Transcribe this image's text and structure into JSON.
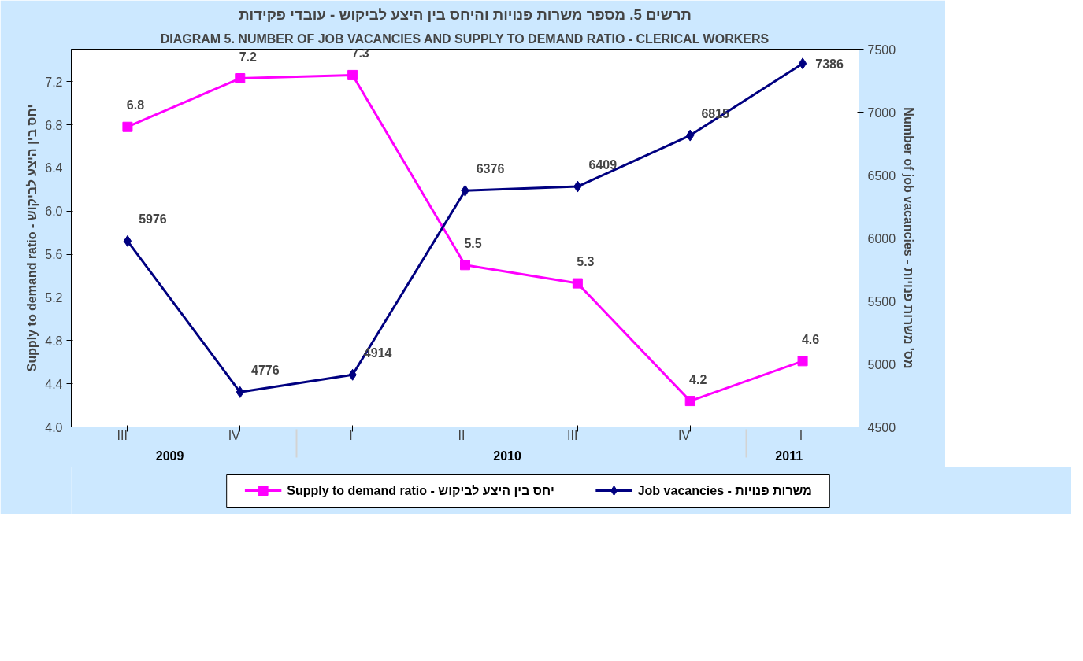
{
  "chart_data": {
    "type": "line",
    "title": "תרשים 5. מספר משרות פנויות והיחס בין היצע לביקוש - עובדי פקידות",
    "subtitle": "DIAGRAM 5. NUMBER OF JOB VACANCIES AND SUPPLY TO DEMAND RATIO - CLERICAL WORKERS",
    "ylabel": "Supply to demand ratio - יחס בין היצע לביקוש",
    "y2label": "Number of job vacancies - מס' משרות פנויות",
    "categories": [
      "III",
      "IV",
      "I",
      "II",
      "III",
      "IV",
      "I"
    ],
    "annotations": [
      "2009",
      "2010",
      "2011"
    ],
    "series": [
      {
        "name": "Supply to demand ratio - יחס בין היצע לביקוש",
        "color": "#ff00ff",
        "marker": "square",
        "values": [
          6.78,
          7.23,
          7.26,
          5.5,
          5.33,
          4.24,
          4.61
        ],
        "value_labels": [
          "6.8",
          "7.2",
          "7.3",
          "5.5",
          "5.3",
          "4.2",
          "4.6"
        ]
      },
      {
        "name": "Job vacancies - משרות פנויות",
        "color": "#000080",
        "marker": "diamond",
        "axis": "y2",
        "values": [
          5976,
          4776,
          4914,
          6376,
          6409,
          6815,
          7386
        ],
        "value_labels": [
          "5976",
          "4776",
          "4914",
          "6376",
          "6409",
          "6815",
          "7386"
        ]
      }
    ],
    "ylim": [
      4.0,
      7.5
    ],
    "yticks": [
      {
        "value": 4.0,
        "label": "4.0"
      },
      4.4,
      4.8,
      5.2,
      5.6,
      {
        "value": 6.0,
        "label": "6.0"
      },
      6.4,
      6.8,
      7.2
    ],
    "y2lim": [
      4500,
      7500
    ],
    "y2ticks": [
      4500,
      5000,
      5500,
      6000,
      6500,
      7000,
      7500
    ],
    "grid": false,
    "legend": "bottom",
    "line_style": "solid"
  }
}
